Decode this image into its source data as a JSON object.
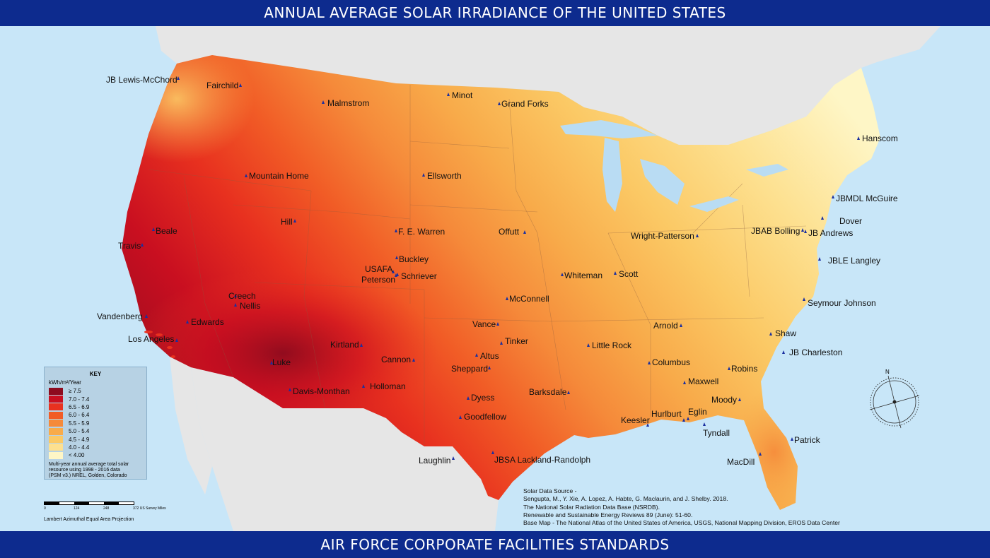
{
  "title": "ANNUAL AVERAGE SOLAR IRRADIANCE OF THE UNITED STATES",
  "footer": "AIR FORCE CORPORATE FACILITIES STANDARDS",
  "colors": {
    "banner": "#0d2b8e",
    "ocean": "#c8e6f8",
    "land_outside": "#e4e4e4",
    "lakes": "#b9dcf3",
    "marker": "#1a2fa0"
  },
  "legend": {
    "title": "KEY",
    "units": "kWh/m²/Year",
    "items": [
      {
        "label": "≥ 7.5",
        "color": "#8e0b1e"
      },
      {
        "label": "7.0 - 7.4",
        "color": "#c90f20"
      },
      {
        "label": "6.5 - 6.9",
        "color": "#e8311f"
      },
      {
        "label": "6.0 - 6.4",
        "color": "#f15c26"
      },
      {
        "label": "5.5 - 5.9",
        "color": "#f58a3a"
      },
      {
        "label": "5.0 - 5.4",
        "color": "#f8ab4a"
      },
      {
        "label": "4.5 - 4.9",
        "color": "#fbc965"
      },
      {
        "label": "4.0 - 4.4",
        "color": "#fde08f"
      },
      {
        "label": "< 4.00",
        "color": "#fef6c6"
      }
    ],
    "note_line1": "Multi-year annual average total solar",
    "note_line2": "resource using 1998 - 2016 data",
    "note_line3": "(PSM v3.) NREL, Golden, Colorado"
  },
  "scale_bar": {
    "t0": "0",
    "t1": "124",
    "t2": "248",
    "t3": "372 US Survey Miles"
  },
  "projection": "Lambert Azimuthal Equal Area Projection",
  "source": {
    "l1": "Solar Data Source -",
    "l2": "Sengupta, M., Y. Xie, A. Lopez, A. Habte, G. Maclaurin, and J. Shelby. 2018.",
    "l3": "The National Solar Radiation Data Base (NSRDB).",
    "l4": "Renewable and Sustainable Energy Reviews  89 (June): 51-60.",
    "l5": "Base Map - The National Atlas of the United States of America, USGS, National Mapping Division, EROS Data Center"
  },
  "compass_letter": "N",
  "bases": [
    "JB Lewis-McChord",
    "Fairchild",
    "Malmstrom",
    "Minot",
    "Grand Forks",
    "Hanscom",
    "Mountain Home",
    "Ellsworth",
    "JBMDL McGuire",
    "Dover",
    "Hill",
    "Beale",
    "F. E. Warren",
    "Offutt",
    "JBAB Bolling",
    "JB Andrews",
    "Wright-Patterson",
    "Travis",
    "Buckley",
    "USAFA",
    "Schriever",
    "Peterson",
    "JBLE Langley",
    "Whiteman",
    "Scott",
    "Creech",
    "Nellis",
    "McConnell",
    "Seymour Johnson",
    "Vandenberg",
    "Edwards",
    "Vance",
    "Arnold",
    "Shaw",
    "Los Angeles",
    "Tinker",
    "Kirtland",
    "Little Rock",
    "Altus",
    "JB Charleston",
    "Cannon",
    "Luke",
    "Sheppard",
    "Columbus",
    "Robins",
    "Maxwell",
    "Davis-Monthan",
    "Holloman",
    "Dyess",
    "Barksdale",
    "Moody",
    "Goodfellow",
    "Hurlburt",
    "Eglin",
    "Keesler",
    "Tyndall",
    "Patrick",
    "Laughlin",
    "JBSA Lackland-Randolph",
    "MacDill"
  ]
}
